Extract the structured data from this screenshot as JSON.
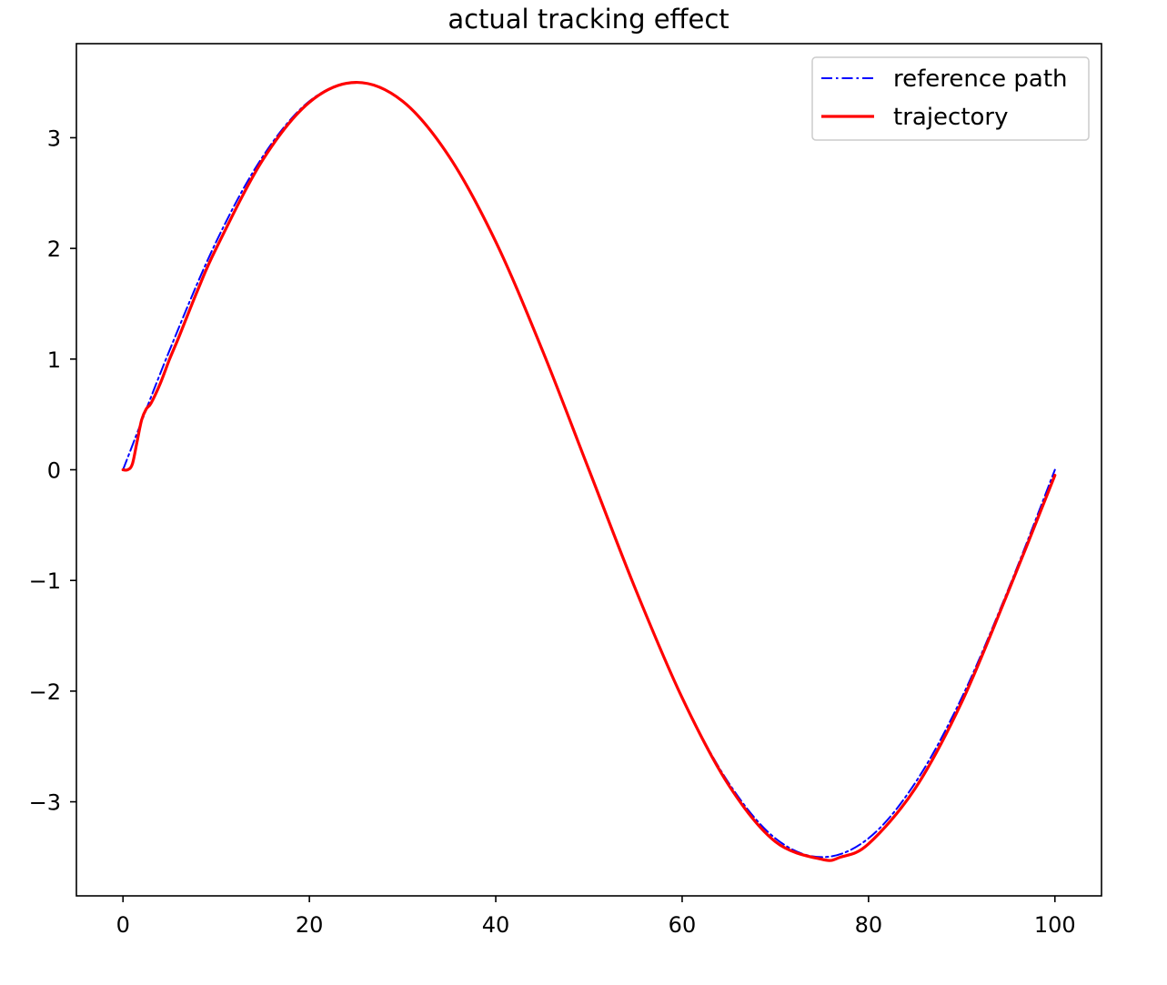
{
  "chart_data": {
    "type": "line",
    "title": "actual tracking effect",
    "xlabel": "",
    "ylabel": "",
    "xlim": [
      -5,
      105
    ],
    "ylim": [
      -3.85,
      3.85
    ],
    "xticks": [
      0,
      20,
      40,
      60,
      80,
      100
    ],
    "xtick_labels": [
      "0",
      "20",
      "40",
      "60",
      "80",
      "100"
    ],
    "yticks": [
      -3,
      -2,
      -1,
      0,
      1,
      2,
      3
    ],
    "ytick_labels": [
      "−3",
      "−2",
      "−1",
      "0",
      "1",
      "2",
      "3"
    ],
    "grid": false,
    "legend_position": "upper right",
    "series": [
      {
        "name": "reference path",
        "color": "#0000ff",
        "style": "dashdot",
        "x": [
          0,
          5,
          10,
          15,
          20,
          25,
          30,
          35,
          40,
          45,
          50,
          55,
          60,
          65,
          70,
          75,
          80,
          85,
          90,
          95,
          100
        ],
        "y": [
          0,
          1.08,
          2.06,
          2.83,
          3.33,
          3.5,
          3.33,
          2.83,
          2.06,
          1.08,
          0,
          -1.08,
          -2.06,
          -2.83,
          -3.33,
          -3.5,
          -3.33,
          -2.83,
          -2.06,
          -1.08,
          0
        ]
      },
      {
        "name": "trajectory",
        "color": "#ff0000",
        "style": "solid",
        "x": [
          0,
          0.5,
          1,
          1.5,
          2,
          2.5,
          3,
          4,
          5,
          6,
          8,
          10,
          15,
          20,
          25,
          30,
          35,
          40,
          45,
          50,
          55,
          60,
          65,
          70,
          75,
          77,
          80,
          85,
          90,
          95,
          100
        ],
        "y": [
          0,
          0,
          0.05,
          0.25,
          0.45,
          0.55,
          0.6,
          0.78,
          1.0,
          1.2,
          1.62,
          2.0,
          2.8,
          3.32,
          3.5,
          3.33,
          2.83,
          2.06,
          1.08,
          0,
          -1.08,
          -2.06,
          -2.85,
          -3.36,
          -3.52,
          -3.5,
          -3.38,
          -2.88,
          -2.1,
          -1.1,
          -0.05
        ]
      }
    ]
  }
}
